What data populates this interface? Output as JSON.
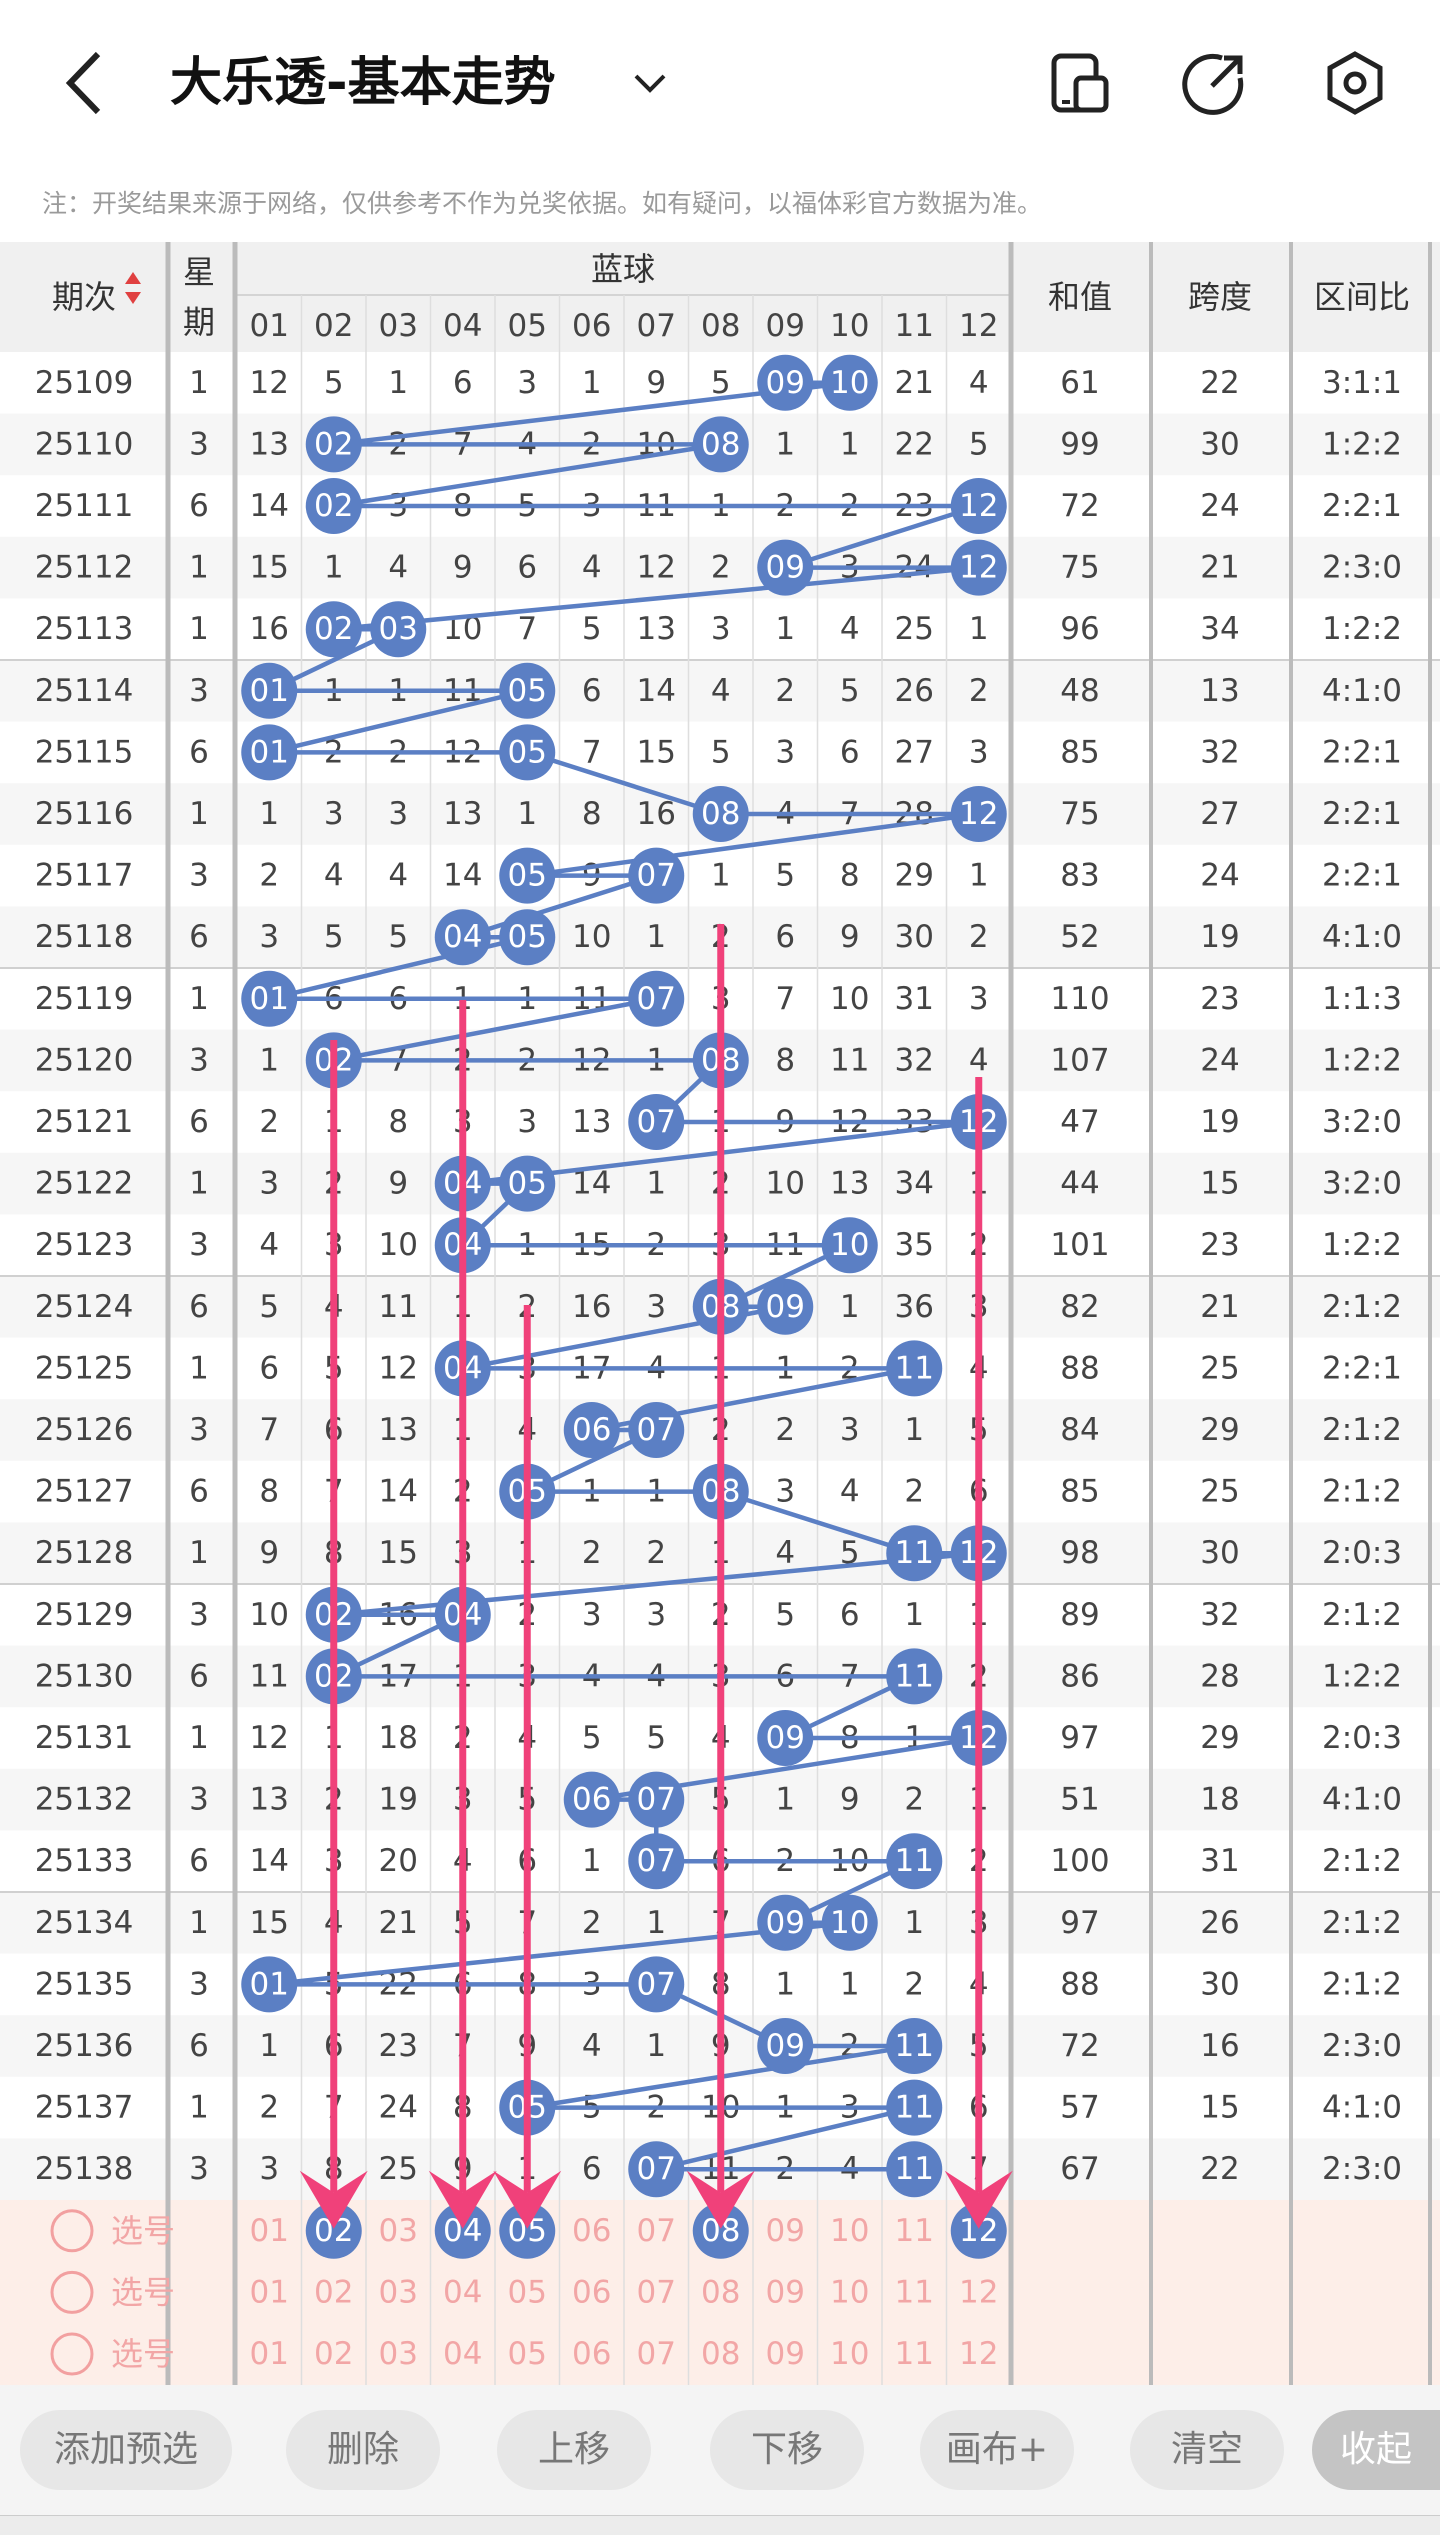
{
  "header": {
    "title": "大乐透-基本走势",
    "back_icon": "back-arrow-icon",
    "dropdown_icon": "chevron-down-icon",
    "icons": [
      "phone-layout-icon",
      "share-icon",
      "settings-hexagon-icon"
    ]
  },
  "notice": "注：开奖结果来源于网络，仅供参考不作为兑奖依据。如有疑问，以福体彩官方数据为准。",
  "table": {
    "col_period": "期次",
    "col_week": "星期",
    "col_blue": "蓝球",
    "col_sum": "和值",
    "col_span": "跨度",
    "col_ratio": "区间比",
    "ball_headers": [
      "01",
      "02",
      "03",
      "04",
      "05",
      "06",
      "07",
      "08",
      "09",
      "10",
      "11",
      "12"
    ],
    "rows": [
      {
        "p": "25109",
        "w": "1",
        "v": [
          "12",
          "5",
          "1",
          "6",
          "3",
          "1",
          "9",
          "5",
          "09",
          "10",
          "21",
          "4"
        ],
        "h": [
          9,
          10
        ],
        "s": "61",
        "k": "22",
        "r": "3:1:1"
      },
      {
        "p": "25110",
        "w": "3",
        "v": [
          "13",
          "02",
          "2",
          "7",
          "4",
          "2",
          "10",
          "08",
          "1",
          "1",
          "22",
          "5"
        ],
        "h": [
          2,
          8
        ],
        "s": "99",
        "k": "30",
        "r": "1:2:2"
      },
      {
        "p": "25111",
        "w": "6",
        "v": [
          "14",
          "02",
          "3",
          "8",
          "5",
          "3",
          "11",
          "1",
          "2",
          "2",
          "23",
          "12"
        ],
        "h": [
          2,
          12
        ],
        "s": "72",
        "k": "24",
        "r": "2:2:1"
      },
      {
        "p": "25112",
        "w": "1",
        "v": [
          "15",
          "1",
          "4",
          "9",
          "6",
          "4",
          "12",
          "2",
          "09",
          "3",
          "24",
          "12"
        ],
        "h": [
          9,
          12
        ],
        "s": "75",
        "k": "21",
        "r": "2:3:0"
      },
      {
        "p": "25113",
        "w": "1",
        "v": [
          "16",
          "02",
          "03",
          "10",
          "7",
          "5",
          "13",
          "3",
          "1",
          "4",
          "25",
          "1"
        ],
        "h": [
          2,
          3
        ],
        "s": "96",
        "k": "34",
        "r": "1:2:2"
      },
      {
        "p": "25114",
        "w": "3",
        "v": [
          "01",
          "1",
          "1",
          "11",
          "05",
          "6",
          "14",
          "4",
          "2",
          "5",
          "26",
          "2"
        ],
        "h": [
          1,
          5
        ],
        "s": "48",
        "k": "13",
        "r": "4:1:0"
      },
      {
        "p": "25115",
        "w": "6",
        "v": [
          "01",
          "2",
          "2",
          "12",
          "05",
          "7",
          "15",
          "5",
          "3",
          "6",
          "27",
          "3"
        ],
        "h": [
          1,
          5
        ],
        "s": "85",
        "k": "32",
        "r": "2:2:1"
      },
      {
        "p": "25116",
        "w": "1",
        "v": [
          "1",
          "3",
          "3",
          "13",
          "1",
          "8",
          "16",
          "08",
          "4",
          "7",
          "28",
          "12"
        ],
        "h": [
          8,
          12
        ],
        "s": "75",
        "k": "27",
        "r": "2:2:1"
      },
      {
        "p": "25117",
        "w": "3",
        "v": [
          "2",
          "4",
          "4",
          "14",
          "05",
          "9",
          "07",
          "1",
          "5",
          "8",
          "29",
          "1"
        ],
        "h": [
          5,
          7
        ],
        "s": "83",
        "k": "24",
        "r": "2:2:1"
      },
      {
        "p": "25118",
        "w": "6",
        "v": [
          "3",
          "5",
          "5",
          "04",
          "05",
          "10",
          "1",
          "2",
          "6",
          "9",
          "30",
          "2"
        ],
        "h": [
          4,
          5
        ],
        "s": "52",
        "k": "19",
        "r": "4:1:0"
      },
      {
        "p": "25119",
        "w": "1",
        "v": [
          "01",
          "6",
          "6",
          "1",
          "1",
          "11",
          "07",
          "3",
          "7",
          "10",
          "31",
          "3"
        ],
        "h": [
          1,
          7
        ],
        "s": "110",
        "k": "23",
        "r": "1:1:3"
      },
      {
        "p": "25120",
        "w": "3",
        "v": [
          "1",
          "02",
          "7",
          "2",
          "2",
          "12",
          "1",
          "08",
          "8",
          "11",
          "32",
          "4"
        ],
        "h": [
          2,
          8
        ],
        "s": "107",
        "k": "24",
        "r": "1:2:2"
      },
      {
        "p": "25121",
        "w": "6",
        "v": [
          "2",
          "1",
          "8",
          "3",
          "3",
          "13",
          "07",
          "1",
          "9",
          "12",
          "33",
          "12"
        ],
        "h": [
          7,
          12
        ],
        "s": "47",
        "k": "19",
        "r": "3:2:0"
      },
      {
        "p": "25122",
        "w": "1",
        "v": [
          "3",
          "2",
          "9",
          "04",
          "05",
          "14",
          "1",
          "2",
          "10",
          "13",
          "34",
          "1"
        ],
        "h": [
          4,
          5
        ],
        "s": "44",
        "k": "15",
        "r": "3:2:0"
      },
      {
        "p": "25123",
        "w": "3",
        "v": [
          "4",
          "3",
          "10",
          "04",
          "1",
          "15",
          "2",
          "3",
          "11",
          "10",
          "35",
          "2"
        ],
        "h": [
          4,
          10
        ],
        "s": "101",
        "k": "23",
        "r": "1:2:2"
      },
      {
        "p": "25124",
        "w": "6",
        "v": [
          "5",
          "4",
          "11",
          "1",
          "2",
          "16",
          "3",
          "08",
          "09",
          "1",
          "36",
          "3"
        ],
        "h": [
          8,
          9
        ],
        "s": "82",
        "k": "21",
        "r": "2:1:2"
      },
      {
        "p": "25125",
        "w": "1",
        "v": [
          "6",
          "5",
          "12",
          "04",
          "3",
          "17",
          "4",
          "1",
          "1",
          "2",
          "11",
          "4"
        ],
        "h": [
          4,
          11
        ],
        "s": "88",
        "k": "25",
        "r": "2:2:1"
      },
      {
        "p": "25126",
        "w": "3",
        "v": [
          "7",
          "6",
          "13",
          "1",
          "4",
          "06",
          "07",
          "2",
          "2",
          "3",
          "1",
          "5"
        ],
        "h": [
          6,
          7
        ],
        "s": "84",
        "k": "29",
        "r": "2:1:2"
      },
      {
        "p": "25127",
        "w": "6",
        "v": [
          "8",
          "7",
          "14",
          "2",
          "05",
          "1",
          "1",
          "08",
          "3",
          "4",
          "2",
          "6"
        ],
        "h": [
          5,
          8
        ],
        "s": "85",
        "k": "25",
        "r": "2:1:2"
      },
      {
        "p": "25128",
        "w": "1",
        "v": [
          "9",
          "8",
          "15",
          "3",
          "1",
          "2",
          "2",
          "1",
          "4",
          "5",
          "11",
          "12"
        ],
        "h": [
          11,
          12
        ],
        "s": "98",
        "k": "30",
        "r": "2:0:3"
      },
      {
        "p": "25129",
        "w": "3",
        "v": [
          "10",
          "02",
          "16",
          "04",
          "2",
          "3",
          "3",
          "2",
          "5",
          "6",
          "1",
          "1"
        ],
        "h": [
          2,
          4
        ],
        "s": "89",
        "k": "32",
        "r": "2:1:2"
      },
      {
        "p": "25130",
        "w": "6",
        "v": [
          "11",
          "02",
          "17",
          "1",
          "3",
          "4",
          "4",
          "3",
          "6",
          "7",
          "11",
          "2"
        ],
        "h": [
          2,
          11
        ],
        "s": "86",
        "k": "28",
        "r": "1:2:2"
      },
      {
        "p": "25131",
        "w": "1",
        "v": [
          "12",
          "1",
          "18",
          "2",
          "4",
          "5",
          "5",
          "4",
          "09",
          "8",
          "1",
          "12"
        ],
        "h": [
          9,
          12
        ],
        "s": "97",
        "k": "29",
        "r": "2:0:3"
      },
      {
        "p": "25132",
        "w": "3",
        "v": [
          "13",
          "2",
          "19",
          "3",
          "5",
          "06",
          "07",
          "5",
          "1",
          "9",
          "2",
          "1"
        ],
        "h": [
          6,
          7
        ],
        "s": "51",
        "k": "18",
        "r": "4:1:0"
      },
      {
        "p": "25133",
        "w": "6",
        "v": [
          "14",
          "3",
          "20",
          "4",
          "6",
          "1",
          "07",
          "6",
          "2",
          "10",
          "11",
          "2"
        ],
        "h": [
          7,
          11
        ],
        "s": "100",
        "k": "31",
        "r": "2:1:2"
      },
      {
        "p": "25134",
        "w": "1",
        "v": [
          "15",
          "4",
          "21",
          "5",
          "7",
          "2",
          "1",
          "7",
          "09",
          "10",
          "1",
          "3"
        ],
        "h": [
          9,
          10
        ],
        "s": "97",
        "k": "26",
        "r": "2:1:2"
      },
      {
        "p": "25135",
        "w": "3",
        "v": [
          "01",
          "5",
          "22",
          "6",
          "8",
          "3",
          "07",
          "8",
          "1",
          "1",
          "2",
          "4"
        ],
        "h": [
          1,
          7
        ],
        "s": "88",
        "k": "30",
        "r": "2:1:2"
      },
      {
        "p": "25136",
        "w": "6",
        "v": [
          "1",
          "6",
          "23",
          "7",
          "9",
          "4",
          "1",
          "9",
          "09",
          "2",
          "11",
          "5"
        ],
        "h": [
          9,
          11
        ],
        "s": "72",
        "k": "16",
        "r": "2:3:0"
      },
      {
        "p": "25137",
        "w": "1",
        "v": [
          "2",
          "7",
          "24",
          "8",
          "05",
          "5",
          "2",
          "10",
          "1",
          "3",
          "11",
          "6"
        ],
        "h": [
          5,
          11
        ],
        "s": "57",
        "k": "15",
        "r": "4:1:0"
      },
      {
        "p": "25138",
        "w": "3",
        "v": [
          "3",
          "8",
          "25",
          "9",
          "1",
          "6",
          "07",
          "11",
          "2",
          "4",
          "11",
          "7"
        ],
        "h": [
          7,
          11
        ],
        "s": "67",
        "k": "22",
        "r": "2:3:0"
      }
    ],
    "pick_rows": [
      {
        "label": "选号",
        "balls": [
          "01",
          "02",
          "03",
          "04",
          "05",
          "06",
          "07",
          "08",
          "09",
          "10",
          "11",
          "12"
        ],
        "selected": [
          2,
          4,
          5,
          8,
          12
        ]
      },
      {
        "label": "选号",
        "balls": [
          "01",
          "02",
          "03",
          "04",
          "05",
          "06",
          "07",
          "08",
          "09",
          "10",
          "11",
          "12"
        ],
        "selected": []
      },
      {
        "label": "选号",
        "balls": [
          "01",
          "02",
          "03",
          "04",
          "05",
          "06",
          "07",
          "08",
          "09",
          "10",
          "11",
          "12"
        ],
        "selected": []
      }
    ],
    "arrows_cols": [
      2,
      4,
      5,
      8,
      12
    ]
  },
  "toolbar": {
    "add": "添加预选",
    "delete": "删除",
    "up": "上移",
    "down": "下移",
    "canvas": "画布+",
    "clear": "清空",
    "collapse": "收起"
  },
  "colors": {
    "ball": "#5b7fc4",
    "line": "#5b7fc4",
    "arrow": "#f0417a",
    "pick_bg": "#fdeee8",
    "pick_text": "#f2a6a6",
    "header_bg": "#f0f0f0"
  }
}
